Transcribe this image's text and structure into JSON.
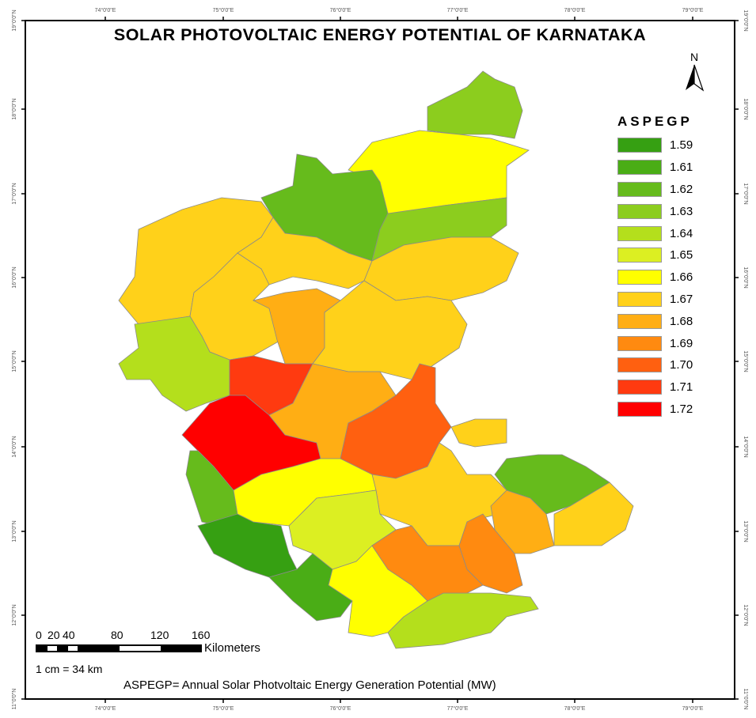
{
  "title": "SOLAR PHOTOVOLTAIC ENERGY POTENTIAL OF KARNATAKA",
  "axes": {
    "longitude_labels": [
      "74°0'0\"E",
      "75°0'0\"E",
      "76°0'0\"E",
      "77°0'0\"E",
      "78°0'0\"E",
      "79°0'0\"E"
    ],
    "latitude_labels": [
      "19°0'0\"N",
      "18°0'0\"N",
      "17°0'0\"N",
      "16°0'0\"N",
      "15°0'0\"N",
      "14°0'0\"N",
      "13°0'0\"N",
      "12°0'0\"N",
      "11°0'0\"N"
    ]
  },
  "north_arrow": {
    "label": "N",
    "icon": "north-arrow-icon"
  },
  "legend": {
    "title": "ASPEGP",
    "items": [
      {
        "value": "1.59",
        "color": "#36a012"
      },
      {
        "value": "1.61",
        "color": "#4aad16"
      },
      {
        "value": "1.62",
        "color": "#66bb1c"
      },
      {
        "value": "1.63",
        "color": "#8ccd1e"
      },
      {
        "value": "1.64",
        "color": "#b4df1c"
      },
      {
        "value": "1.65",
        "color": "#dcef22"
      },
      {
        "value": "1.66",
        "color": "#ffff00"
      },
      {
        "value": "1.67",
        "color": "#ffd11a"
      },
      {
        "value": "1.68",
        "color": "#ffae14"
      },
      {
        "value": "1.69",
        "color": "#ff8a10"
      },
      {
        "value": "1.70",
        "color": "#ff6010"
      },
      {
        "value": "1.71",
        "color": "#ff3a10"
      },
      {
        "value": "1.72",
        "color": "#ff0000"
      }
    ]
  },
  "regions": [
    {
      "value": "1.63"
    },
    {
      "value": "1.66"
    },
    {
      "value": "1.62"
    },
    {
      "value": "1.63"
    },
    {
      "value": "1.67"
    },
    {
      "value": "1.67"
    },
    {
      "value": "1.67"
    },
    {
      "value": "1.67"
    },
    {
      "value": "1.68"
    },
    {
      "value": "1.67"
    },
    {
      "value": "1.64"
    },
    {
      "value": "1.71"
    },
    {
      "value": "1.72"
    },
    {
      "value": "1.68"
    },
    {
      "value": "1.70"
    },
    {
      "value": "1.67"
    },
    {
      "value": "1.62"
    },
    {
      "value": "1.59"
    },
    {
      "value": "1.66"
    },
    {
      "value": "1.65"
    },
    {
      "value": "1.61"
    },
    {
      "value": "1.66"
    },
    {
      "value": "1.64"
    },
    {
      "value": "1.69"
    },
    {
      "value": "1.69"
    },
    {
      "value": "1.68"
    },
    {
      "value": "1.67"
    },
    {
      "value": "1.62"
    },
    {
      "value": "1.67"
    }
  ],
  "scale": {
    "numbers": [
      "0",
      "20",
      "40",
      "80",
      "120",
      "160"
    ],
    "unit": "Kilometers",
    "ratio": "1 cm = 34 km"
  },
  "footnote": "ASPEGP= Annual Solar Photvoltaic Energy Generation Potential (MW)"
}
